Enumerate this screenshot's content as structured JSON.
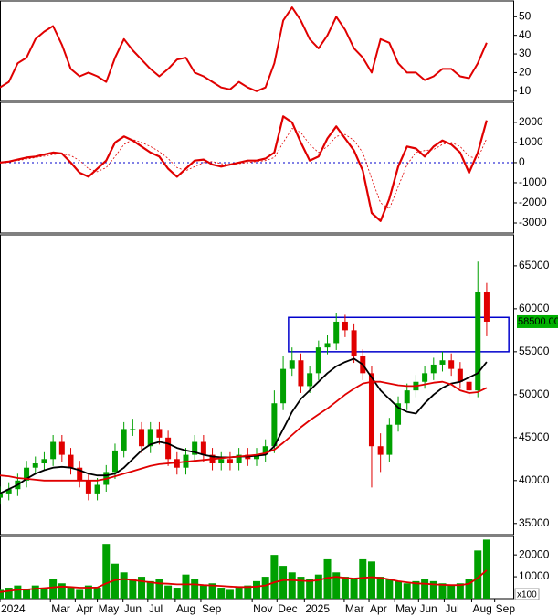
{
  "chart_data": [
    {
      "type": "line",
      "xlim": [
        0,
        58
      ],
      "ylim": [
        5,
        58
      ],
      "yticks": [
        10,
        20,
        30,
        40,
        50
      ],
      "x": [
        0,
        1,
        2,
        3,
        4,
        5,
        6,
        7,
        8,
        9,
        10,
        11,
        12,
        13,
        14,
        15,
        16,
        17,
        18,
        19,
        20,
        21,
        22,
        23,
        24,
        25,
        26,
        27,
        28,
        29,
        30,
        31,
        32,
        33,
        34,
        35,
        36,
        37,
        38,
        39,
        40,
        41,
        42,
        43,
        44,
        45,
        46,
        47,
        48,
        49,
        50,
        51,
        52,
        53,
        54,
        55
      ],
      "series": [
        {
          "color": "#e00000",
          "width": 2,
          "values": [
            12,
            15,
            25,
            28,
            38,
            42,
            45,
            35,
            22,
            18,
            20,
            18,
            15,
            28,
            38,
            32,
            27,
            22,
            18,
            22,
            27,
            28,
            20,
            18,
            15,
            12,
            11,
            15,
            12,
            10,
            12,
            25,
            48,
            55,
            48,
            38,
            33,
            40,
            50,
            43,
            33,
            28,
            20,
            38,
            36,
            25,
            20,
            20,
            16,
            18,
            22,
            22,
            18,
            17,
            25,
            36
          ]
        }
      ]
    },
    {
      "type": "line",
      "xlim": [
        0,
        58
      ],
      "ylim": [
        -3500,
        2950
      ],
      "yticks": [
        -3000,
        -2000,
        -1000,
        0,
        1000,
        2000
      ],
      "reference_line": 0,
      "x": [
        0,
        1,
        2,
        3,
        4,
        5,
        6,
        7,
        8,
        9,
        10,
        11,
        12,
        13,
        14,
        15,
        16,
        17,
        18,
        19,
        20,
        21,
        22,
        23,
        24,
        25,
        26,
        27,
        28,
        29,
        30,
        31,
        32,
        33,
        34,
        35,
        36,
        37,
        38,
        39,
        40,
        41,
        42,
        43,
        44,
        45,
        46,
        47,
        48,
        49,
        50,
        51,
        52,
        53,
        54,
        55
      ],
      "series": [
        {
          "color": "#e00000",
          "width": 2.2,
          "values": [
            0,
            50,
            150,
            250,
            300,
            400,
            500,
            450,
            0,
            -500,
            -700,
            -300,
            100,
            1000,
            1300,
            1100,
            800,
            500,
            300,
            -300,
            -700,
            -300,
            100,
            150,
            -100,
            -200,
            -100,
            0,
            100,
            100,
            200,
            500,
            2300,
            2000,
            1000,
            100,
            300,
            1200,
            1800,
            1200,
            600,
            -400,
            -2500,
            -2900,
            -1800,
            -200,
            800,
            700,
            300,
            800,
            1100,
            900,
            500,
            -500,
            500,
            2100
          ]
        },
        {
          "color": "#e00000",
          "width": 0.8,
          "dashed": true,
          "values": [
            0,
            50,
            100,
            180,
            250,
            320,
            400,
            440,
            350,
            100,
            -300,
            -450,
            -250,
            300,
            900,
            1150,
            1000,
            800,
            550,
            200,
            -250,
            -400,
            -200,
            0,
            50,
            -50,
            -100,
            -50,
            0,
            50,
            100,
            250,
            1000,
            1700,
            1500,
            900,
            500,
            800,
            1300,
            1400,
            1100,
            500,
            -800,
            -2000,
            -2300,
            -1200,
            -100,
            500,
            600,
            650,
            900,
            1000,
            800,
            300,
            200,
            1200
          ]
        }
      ]
    },
    {
      "type": "candlestick",
      "xlim": [
        0,
        58
      ],
      "ylim": [
        33700,
        68500
      ],
      "yticks": [
        35000,
        40000,
        45000,
        50000,
        55000,
        60000,
        65000
      ],
      "x": [
        0,
        1,
        2,
        3,
        4,
        5,
        6,
        7,
        8,
        9,
        10,
        11,
        12,
        13,
        14,
        15,
        16,
        17,
        18,
        19,
        20,
        21,
        22,
        23,
        24,
        25,
        26,
        27,
        28,
        29,
        30,
        31,
        32,
        33,
        34,
        35,
        36,
        37,
        38,
        39,
        40,
        41,
        42,
        43,
        44,
        45,
        46,
        47,
        48,
        49,
        50,
        51,
        52,
        53,
        54,
        55
      ],
      "open": [
        38000,
        38500,
        39000,
        40000,
        41500,
        42000,
        42500,
        44500,
        43000,
        41500,
        40000,
        38500,
        39500,
        41000,
        43500,
        46000,
        46000,
        44000,
        46000,
        45000,
        42500,
        41500,
        43000,
        44500,
        43000,
        42000,
        42500,
        42000,
        43000,
        42500,
        43000,
        44000,
        49000,
        53000,
        54000,
        51000,
        52500,
        55500,
        56000,
        58500,
        57500,
        54500,
        52500,
        44000,
        43000,
        46500,
        49000,
        50500,
        51500,
        52500,
        53500,
        54000,
        53000,
        51500,
        50500,
        62000
      ],
      "high": [
        39300,
        39800,
        40800,
        42300,
        42800,
        43300,
        45300,
        45300,
        43800,
        42300,
        40800,
        40300,
        41800,
        44300,
        46800,
        47200,
        46800,
        46800,
        46800,
        45800,
        43300,
        43800,
        45300,
        45300,
        43800,
        43300,
        43300,
        43800,
        43800,
        43800,
        44800,
        50500,
        54500,
        55500,
        54800,
        53300,
        56300,
        57000,
        59500,
        59300,
        58300,
        55300,
        53300,
        45500,
        47300,
        49800,
        51300,
        52300,
        53300,
        54300,
        55000,
        54800,
        53800,
        52300,
        65500,
        63000
      ],
      "low": [
        37200,
        37700,
        38200,
        39200,
        40700,
        41200,
        41700,
        42200,
        40700,
        39200,
        37700,
        37700,
        38700,
        40200,
        42700,
        45200,
        43200,
        43200,
        44200,
        41700,
        40700,
        40700,
        42200,
        42200,
        41200,
        41200,
        41200,
        41200,
        41700,
        41700,
        42200,
        43200,
        48200,
        52200,
        50200,
        50200,
        51700,
        54700,
        55200,
        56700,
        53700,
        51700,
        39200,
        41000,
        42200,
        45700,
        48200,
        49700,
        50700,
        51700,
        52700,
        52200,
        50700,
        49700,
        49700,
        56800
      ],
      "close": [
        38500,
        39000,
        40000,
        41500,
        42000,
        42500,
        44500,
        43000,
        41500,
        40000,
        38500,
        39500,
        41000,
        43500,
        46000,
        46000,
        44000,
        46000,
        45000,
        42500,
        41500,
        43000,
        44500,
        43000,
        42000,
        42500,
        42000,
        43000,
        42500,
        43000,
        44000,
        49000,
        53000,
        54000,
        51000,
        52500,
        55500,
        56000,
        58500,
        57500,
        54500,
        52500,
        44000,
        43000,
        46500,
        49000,
        50500,
        51500,
        52500,
        53500,
        54000,
        53000,
        51500,
        50500,
        62000,
        58500
      ],
      "up_color": "#00a000",
      "down_color": "#e00000",
      "overlays": [
        {
          "color": "#000000",
          "values": [
            38500,
            39000,
            39500,
            40200,
            40800,
            41200,
            41500,
            41600,
            41500,
            41200,
            40800,
            40600,
            40600,
            40800,
            41500,
            42500,
            43500,
            44200,
            44500,
            44300,
            43800,
            43500,
            43300,
            43000,
            42800,
            42700,
            42700,
            42800,
            42800,
            42900,
            43000,
            44000,
            46000,
            48000,
            49500,
            50500,
            51500,
            52500,
            53300,
            53800,
            54200,
            53500,
            52000,
            50500,
            49500,
            48500,
            48000,
            47800,
            49000,
            50000,
            50800,
            51300,
            51500,
            52000,
            52500,
            53800
          ]
        },
        {
          "color": "#e00000",
          "values": [
            40600,
            40500,
            40300,
            40200,
            40100,
            40000,
            40000,
            40000,
            40000,
            40000,
            40000,
            40000,
            40200,
            40500,
            40800,
            41100,
            41400,
            41700,
            41900,
            42000,
            42100,
            42200,
            42300,
            42400,
            42500,
            42600,
            42700,
            42800,
            42900,
            43000,
            43200,
            43600,
            44400,
            45300,
            46200,
            47000,
            47700,
            48400,
            49200,
            50000,
            50700,
            51300,
            51500,
            51500,
            51300,
            51100,
            51000,
            51000,
            51200,
            51400,
            51500,
            51200,
            50500,
            50200,
            50300,
            50800
          ]
        }
      ],
      "zone": {
        "x": [
          32.6,
          57.5
        ],
        "y": [
          55000,
          59000
        ],
        "color": "#0000cc"
      },
      "last_label": "58500.00"
    },
    {
      "type": "bar",
      "xlim": [
        0,
        58
      ],
      "ylim": [
        0,
        28000
      ],
      "yticks": [
        10000,
        20000
      ],
      "unit_label": "x100",
      "color": "#00a000",
      "x": [
        0,
        1,
        2,
        3,
        4,
        5,
        6,
        7,
        8,
        9,
        10,
        11,
        12,
        13,
        14,
        15,
        16,
        17,
        18,
        19,
        20,
        21,
        22,
        23,
        24,
        25,
        26,
        27,
        28,
        29,
        30,
        31,
        32,
        33,
        34,
        35,
        36,
        37,
        38,
        39,
        40,
        41,
        42,
        43,
        44,
        45,
        46,
        47,
        48,
        49,
        50,
        51,
        52,
        53,
        54,
        55
      ],
      "values": [
        4000,
        5000,
        6000,
        4000,
        6000,
        5000,
        9000,
        7000,
        5000,
        4000,
        6000,
        5000,
        25000,
        16000,
        12000,
        9000,
        10000,
        8000,
        9000,
        6000,
        5000,
        11000,
        9000,
        6000,
        7000,
        5000,
        4000,
        5000,
        6000,
        8000,
        10000,
        20000,
        15000,
        12000,
        10000,
        9000,
        11000,
        18000,
        12000,
        10000,
        9000,
        18000,
        17000,
        10000,
        9000,
        8000,
        7000,
        8000,
        9000,
        8000,
        7000,
        6000,
        7000,
        9000,
        22000,
        27000
      ],
      "average": {
        "color": "#e00000",
        "values": [
          3000,
          3500,
          4000,
          4200,
          4500,
          4800,
          5200,
          5500,
          5300,
          5000,
          5000,
          5100,
          7000,
          8500,
          9000,
          8500,
          8000,
          7500,
          7000,
          6800,
          6500,
          6500,
          6500,
          6200,
          6000,
          5800,
          5500,
          5300,
          5300,
          5500,
          6000,
          7500,
          8500,
          8500,
          8200,
          8000,
          8500,
          9500,
          10000,
          9500,
          9200,
          9500,
          9800,
          9500,
          8800,
          8000,
          7500,
          7000,
          6800,
          6500,
          6300,
          6200,
          6200,
          6800,
          9500,
          13000
        ]
      },
      "xticks": [
        {
          "value": 0,
          "label": "2024"
        },
        {
          "value": 5.7,
          "label": "Mar"
        },
        {
          "value": 8.5,
          "label": "Apr"
        },
        {
          "value": 11,
          "label": "May"
        },
        {
          "value": 13.9,
          "label": "Jun"
        },
        {
          "value": 16.7,
          "label": "Jul"
        },
        {
          "value": 19.8,
          "label": "Aug"
        },
        {
          "value": 22.7,
          "label": "Sep"
        },
        {
          "value": 28.5,
          "label": "Nov"
        },
        {
          "value": 31.3,
          "label": "Dec"
        },
        {
          "value": 34.4,
          "label": "2025"
        },
        {
          "value": 38.9,
          "label": "Mar"
        },
        {
          "value": 41.7,
          "label": "Apr"
        },
        {
          "value": 44.6,
          "label": "May"
        },
        {
          "value": 47.3,
          "label": "Jun"
        },
        {
          "value": 50.2,
          "label": "Jul"
        },
        {
          "value": 53.3,
          "label": "Aug"
        },
        {
          "value": 55.9,
          "label": "Sep"
        }
      ]
    }
  ]
}
